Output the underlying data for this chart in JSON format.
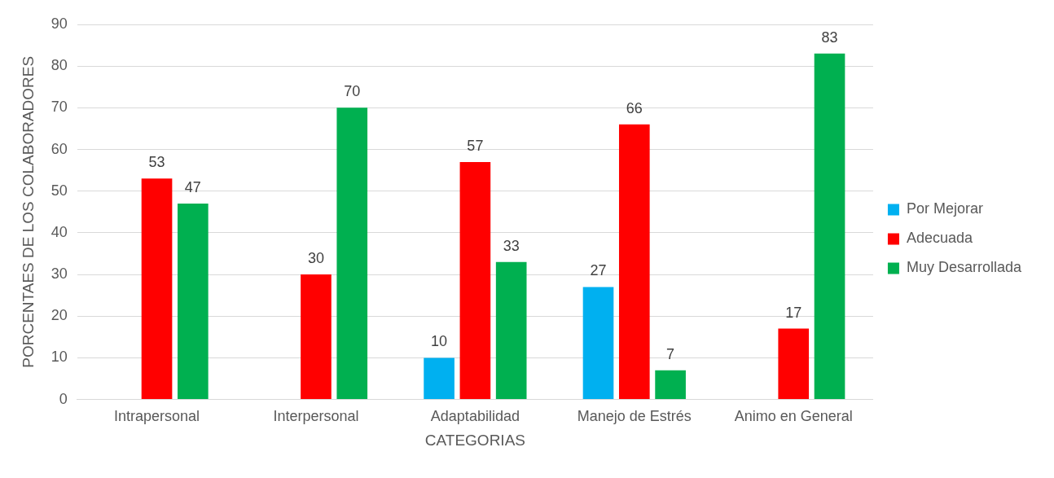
{
  "chart_data": {
    "type": "bar",
    "xlabel": "CATEGORIAS",
    "ylabel": "PORCENTAES DE LOS COLABORADORES",
    "categories": [
      "Intrapersonal",
      "Interpersonal",
      "Adaptabilidad",
      "Manejo de Estrés",
      "Animo en General"
    ],
    "series": [
      {
        "name": "Por Mejorar",
        "color": "#00b0f0",
        "values": [
          null,
          null,
          10,
          27,
          null
        ]
      },
      {
        "name": "Adecuada",
        "color": "#ff0000",
        "values": [
          53,
          30,
          57,
          66,
          17
        ]
      },
      {
        "name": "Muy Desarrollada",
        "color": "#00b050",
        "values": [
          47,
          70,
          33,
          7,
          83
        ]
      }
    ],
    "ylim": [
      0,
      90
    ],
    "yticks": [
      0,
      10,
      20,
      30,
      40,
      50,
      60,
      70,
      80,
      90
    ],
    "grid": "y",
    "legend": "right",
    "data_labels": true
  }
}
